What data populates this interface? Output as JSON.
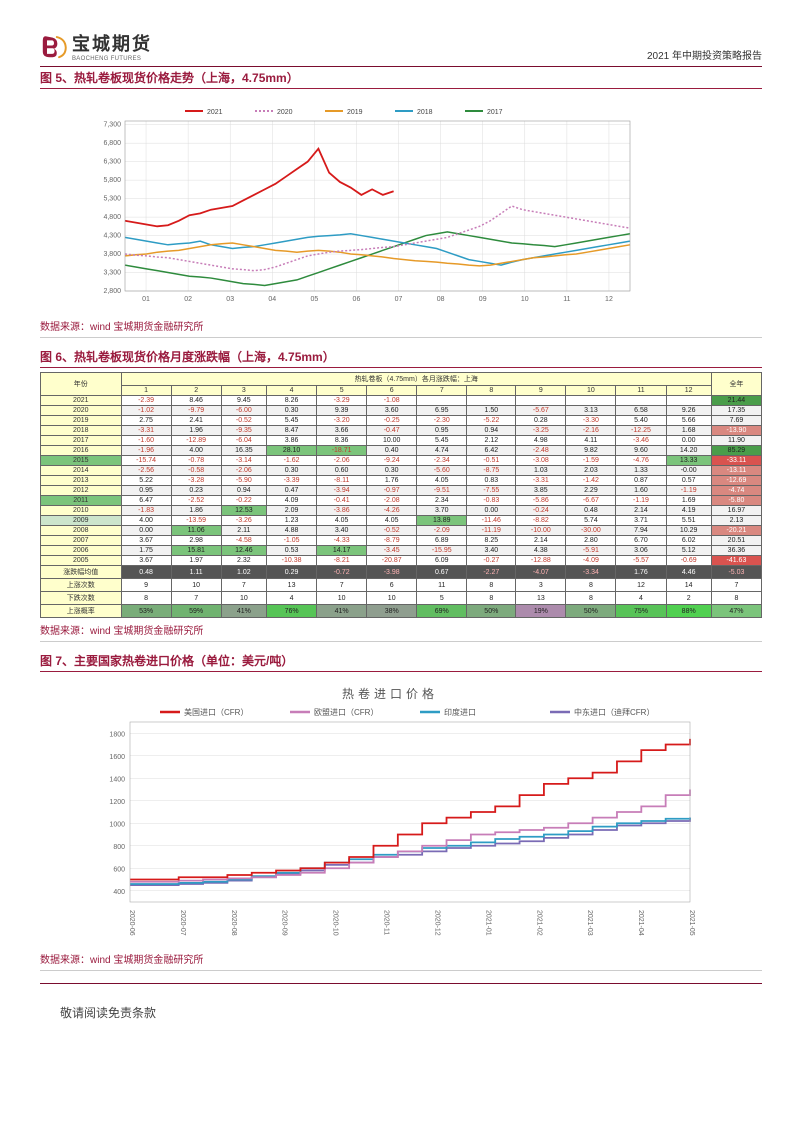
{
  "header": {
    "company_cn": "宝城期货",
    "company_en": "BAOCHENG FUTURES",
    "right_text": "2021 年中期投资策略报告"
  },
  "chart5": {
    "title": "图 5、热轧卷板现货价格走势（上海，4.75mm）",
    "type": "line",
    "legend": [
      {
        "label": "2021",
        "color": "#d61a1a"
      },
      {
        "label": "2020",
        "color": "#c77db8"
      },
      {
        "label": "2019",
        "color": "#e69a28"
      },
      {
        "label": "2018",
        "color": "#2e9cc4"
      },
      {
        "label": "2017",
        "color": "#2e8b3d"
      }
    ],
    "x_ticks": [
      "01",
      "02",
      "03",
      "04",
      "05",
      "06",
      "07",
      "08",
      "09",
      "10",
      "11",
      "12"
    ],
    "y_ticks": [
      2800,
      3300,
      3800,
      4300,
      4800,
      5300,
      5800,
      6300,
      6800,
      7300
    ],
    "ylim": [
      2800,
      7400
    ],
    "grid_color": "#dcdcdc",
    "bg_color": "#ffffff",
    "tick_fontsize": 7,
    "legend_fontsize": 7,
    "series": {
      "2021": [
        4700,
        4650,
        4600,
        4550,
        4580,
        4700,
        4850,
        4900,
        5000,
        5050,
        5100,
        5250,
        5400,
        5550,
        5700,
        5900,
        6100,
        6300,
        6650,
        6000,
        5750,
        5600,
        5400,
        5550,
        5400,
        5500
      ],
      "2020": [
        3800,
        3770,
        3750,
        3720,
        3700,
        3650,
        3600,
        3550,
        3500,
        3450,
        3400,
        3380,
        3350,
        3380,
        3450,
        3550,
        3650,
        3750,
        3800,
        3850,
        3880,
        3900,
        3920,
        3950,
        3980,
        4000,
        4050,
        4100,
        4150,
        4200,
        4250,
        4350,
        4450,
        4550,
        4700,
        4900,
        5100,
        5000,
        4950,
        4900,
        4850,
        4800,
        4750,
        4700,
        4650,
        4600,
        4550,
        4500
      ],
      "2019": [
        3750,
        3780,
        3800,
        3850,
        3880,
        3900,
        3950,
        4000,
        4050,
        4080,
        4100,
        4050,
        4000,
        3950,
        3900,
        3880,
        3850,
        3880,
        3900,
        3880,
        3850,
        3800,
        3780,
        3750,
        3720,
        3680,
        3650,
        3620,
        3600,
        3580,
        3550,
        3530,
        3500,
        3480,
        3500,
        3550,
        3600,
        3650,
        3700,
        3720,
        3750,
        3780,
        3800,
        3850,
        3900,
        3950,
        4000,
        4050
      ],
      "2018": [
        4250,
        4200,
        4150,
        4100,
        4050,
        4080,
        4100,
        4150,
        4050,
        4000,
        3950,
        3980,
        4000,
        4050,
        4100,
        4150,
        4200,
        4250,
        4280,
        4300,
        4320,
        4350,
        4300,
        4250,
        4200,
        4150,
        4100,
        4050,
        4000,
        3950,
        3850,
        3750,
        3650,
        3600,
        3550,
        3500,
        3580,
        3650,
        3700,
        3750,
        3800,
        3850,
        3900,
        3950,
        4000,
        4050,
        4100,
        4150
      ],
      "2017": [
        3500,
        3450,
        3400,
        3350,
        3300,
        3250,
        3200,
        3180,
        3150,
        3100,
        3050,
        3000,
        2980,
        2950,
        3000,
        3050,
        3100,
        3200,
        3300,
        3400,
        3500,
        3600,
        3700,
        3800,
        3900,
        4000,
        4100,
        4200,
        4300,
        4350,
        4400,
        4350,
        4300,
        4250,
        4200,
        4150,
        4100,
        4080,
        4050,
        4030,
        4000,
        4050,
        4100,
        4150,
        4200,
        4250,
        4300,
        4350
      ]
    }
  },
  "source_text": "数据来源：wind 宝城期货金融研究所",
  "table6": {
    "title": "图 6、热轧卷板现货价格月度涨跌幅（上海，4.75mm）",
    "top_header": "热轧卷板（4.75mm）各月涨跌幅：上海",
    "col_year": "年份",
    "col_full": "全年",
    "months": [
      "1",
      "2",
      "3",
      "4",
      "5",
      "6",
      "7",
      "8",
      "9",
      "10",
      "11",
      "12"
    ],
    "neg_color": "#c0392b",
    "pos_color": "#222222",
    "row_bg_alt": "#f2f2f2",
    "green_bg": "#7bc47b",
    "dark_green_bg": "#4a9d4a",
    "header_bg": "#ffffcc",
    "dark_row_bg": "#555555",
    "dark_row_fg": "#ffffff",
    "rows": [
      {
        "year": "2021",
        "vals": [
          "-2.39",
          "8.46",
          "9.45",
          "8.26",
          "-3.29",
          "-1.08",
          "",
          "",
          "",
          "",
          "",
          ""
        ],
        "full": "21.44",
        "full_bg": "#4a9d4a"
      },
      {
        "year": "2020",
        "vals": [
          "-1.02",
          "-9.79",
          "-6.00",
          "0.30",
          "9.39",
          "3.60",
          "6.95",
          "1.50",
          "-5.67",
          "3.13",
          "6.58",
          "9.26"
        ],
        "full": "17.35"
      },
      {
        "year": "2019",
        "vals": [
          "2.75",
          "2.41",
          "-0.52",
          "5.45",
          "-3.20",
          "-0.25",
          "-2.30",
          "-5.22",
          "0.28",
          "-3.30",
          "5.40",
          "5.66"
        ],
        "full": "7.69"
      },
      {
        "year": "2018",
        "vals": [
          "-3.31",
          "1.96",
          "-9.35",
          "8.47",
          "3.66",
          "-0.47",
          "0.95",
          "0.94",
          "-3.25",
          "-2.16",
          "-12.25",
          "1.68"
        ],
        "full": "-13.90"
      },
      {
        "year": "2017",
        "vals": [
          "-1.60",
          "-12.89",
          "-6.04",
          "3.86",
          "8.36",
          "10.00",
          "5.45",
          "2.12",
          "4.98",
          "4.11",
          "-3.46",
          "0.00"
        ],
        "full": "11.90"
      },
      {
        "year": "2016",
        "vals": [
          "-1.96",
          "4.00",
          "16.35",
          "28.10",
          "-18.71",
          "0.40",
          "4.74",
          "6.42",
          "-2.48",
          "9.82",
          "9.60",
          "14.20"
        ],
        "full": "85.29",
        "full_bg": "#4a9d4a",
        "hl": [
          3,
          4
        ]
      },
      {
        "year": "2015",
        "vals": [
          "-15.74",
          "-0.78",
          "-3.14",
          "-1.62",
          "-2.06",
          "-9.24",
          "-2.34",
          "-0.51",
          "-3.08",
          "-1.59",
          "-4.76",
          "13.33"
        ],
        "full": "-33.11",
        "full_bg": "#d9534f",
        "yr_bg": "#7bc47b",
        "hl": [
          11
        ]
      },
      {
        "year": "2014",
        "vals": [
          "-2.56",
          "-0.58",
          "-2.06",
          "0.30",
          "0.60",
          "0.30",
          "-5.60",
          "-8.75",
          "1.03",
          "2.03",
          "1.33",
          "-0.00"
        ],
        "full": "-13.11"
      },
      {
        "year": "2013",
        "vals": [
          "5.22",
          "-3.28",
          "-5.90",
          "-3.39",
          "-8.11",
          "1.76",
          "4.05",
          "0.83",
          "-3.31",
          "-1.42",
          "0.87",
          "0.57"
        ],
        "full": "-12.69"
      },
      {
        "year": "2012",
        "vals": [
          "0.95",
          "0.23",
          "0.94",
          "0.47",
          "-3.94",
          "-0.97",
          "-9.51",
          "-7.55",
          "3.85",
          "2.29",
          "1.60",
          "-1.19"
        ],
        "full": "-4.74"
      },
      {
        "year": "2011",
        "vals": [
          "6.47",
          "-2.52",
          "-0.22",
          "4.09",
          "-0.41",
          "-2.08",
          "2.34",
          "-0.83",
          "-5.86",
          "-6.67",
          "-1.19",
          "1.69"
        ],
        "full": "-5.80",
        "yr_bg": "#7bc47b"
      },
      {
        "year": "2010",
        "vals": [
          "-1.83",
          "1.86",
          "12.53",
          "2.09",
          "-3.86",
          "-4.26",
          "3.70",
          "0.00",
          "-0.24",
          "0.48",
          "2.14",
          "4.19"
        ],
        "full": "16.97",
        "hl": [
          2
        ]
      },
      {
        "year": "2009",
        "vals": [
          "4.00",
          "-13.59",
          "-3.26",
          "1.23",
          "4.05",
          "4.05",
          "13.89",
          "-11.46",
          "-8.82",
          "5.74",
          "3.71",
          "5.51"
        ],
        "full": "2.13",
        "yr_bg": "#cce5cc",
        "hl": [
          6
        ]
      },
      {
        "year": "2008",
        "vals": [
          "0.00",
          "11.06",
          "2.11",
          "4.88",
          "3.40",
          "-0.52",
          "-2.09",
          "-11.19",
          "-10.00",
          "-30.00",
          "7.94",
          "10.29"
        ],
        "full": "-20.21",
        "hl": [
          1
        ]
      },
      {
        "year": "2007",
        "vals": [
          "3.67",
          "2.98",
          "-4.58",
          "-1.05",
          "-4.33",
          "-8.79",
          "6.89",
          "8.25",
          "2.14",
          "2.80",
          "6.70",
          "6.02"
        ],
        "full": "20.51"
      },
      {
        "year": "2006",
        "vals": [
          "1.75",
          "15.81",
          "12.46",
          "0.53",
          "14.17",
          "-3.45",
          "-15.95",
          "3.40",
          "4.38",
          "-5.91",
          "3.06",
          "5.12"
        ],
        "full": "36.36",
        "hl": [
          1,
          2,
          4
        ]
      },
      {
        "year": "2005",
        "vals": [
          "3.67",
          "1.97",
          "2.32",
          "-10.38",
          "-8.21",
          "-20.87",
          "6.09",
          "-0.27",
          "-12.88",
          "-4.09",
          "-5.57",
          "-0.69"
        ],
        "full": "-41.63",
        "full_bg": "#d9534f"
      }
    ],
    "summary": [
      {
        "label": "涨跌幅均值",
        "vals": [
          "0.48",
          "1.11",
          "1.02",
          "0.29",
          "-0.72",
          "-3.98",
          "0.67",
          "-2.27",
          "-4.07",
          "-3.34",
          "1.76",
          "4.46"
        ],
        "full": "-5.03",
        "bg": "#555555",
        "fg": "#ffffff"
      },
      {
        "label": "上涨次数",
        "vals": [
          "9",
          "10",
          "7",
          "13",
          "7",
          "6",
          "11",
          "8",
          "3",
          "8",
          "12",
          "14"
        ],
        "full": "7"
      },
      {
        "label": "下跌次数",
        "vals": [
          "8",
          "7",
          "10",
          "4",
          "10",
          "10",
          "5",
          "8",
          "13",
          "8",
          "4",
          "2"
        ],
        "full": "8"
      },
      {
        "label": "上涨概率",
        "vals": [
          "53%",
          "59%",
          "41%",
          "76%",
          "41%",
          "38%",
          "69%",
          "50%",
          "19%",
          "50%",
          "75%",
          "88%"
        ],
        "full": "47%",
        "bg_grad": true
      }
    ]
  },
  "chart7": {
    "title": "图 7、主要国家热卷进口价格（单位：美元/吨）",
    "chart_title": "热卷进口价格",
    "chart_title_fontsize": 12,
    "type": "line-step",
    "legend": [
      {
        "label": "美国进口（CFR）",
        "color": "#d61a1a"
      },
      {
        "label": "欧盟进口（CFR）",
        "color": "#c77db8"
      },
      {
        "label": "印度进口",
        "color": "#2e9cc4"
      },
      {
        "label": "中东进口（迪拜CFR）",
        "color": "#7a6bb5"
      }
    ],
    "x_ticks": [
      "2020-06",
      "2020-07",
      "2020-08",
      "2020-09",
      "2020-10",
      "2020-11",
      "2020-12",
      "2021-01",
      "2021-02",
      "2021-03",
      "2021-04",
      "2021-05"
    ],
    "y_ticks": [
      400,
      600,
      800,
      1000,
      1200,
      1400,
      1600,
      1800
    ],
    "ylim": [
      300,
      1900
    ],
    "grid_color": "#dcdcdc",
    "bg_color": "#ffffff",
    "tick_fontsize": 7,
    "series": {
      "us": [
        500,
        500,
        520,
        520,
        540,
        560,
        580,
        600,
        650,
        700,
        800,
        900,
        1000,
        1050,
        1100,
        1150,
        1250,
        1350,
        1400,
        1450,
        1550,
        1650,
        1700,
        1750
      ],
      "eu": [
        480,
        480,
        490,
        500,
        510,
        520,
        540,
        560,
        600,
        650,
        700,
        750,
        800,
        850,
        900,
        920,
        940,
        960,
        1000,
        1050,
        1100,
        1150,
        1250,
        1300
      ],
      "in": [
        460,
        460,
        470,
        480,
        500,
        530,
        560,
        600,
        650,
        680,
        720,
        750,
        780,
        800,
        830,
        860,
        880,
        900,
        930,
        970,
        1000,
        1020,
        1040,
        1050
      ],
      "me": [
        450,
        450,
        460,
        470,
        490,
        520,
        550,
        580,
        630,
        650,
        700,
        720,
        750,
        780,
        800,
        820,
        840,
        870,
        900,
        940,
        980,
        1000,
        1020,
        1050
      ]
    }
  },
  "footer": {
    "text": "敬请阅读免责条款"
  }
}
